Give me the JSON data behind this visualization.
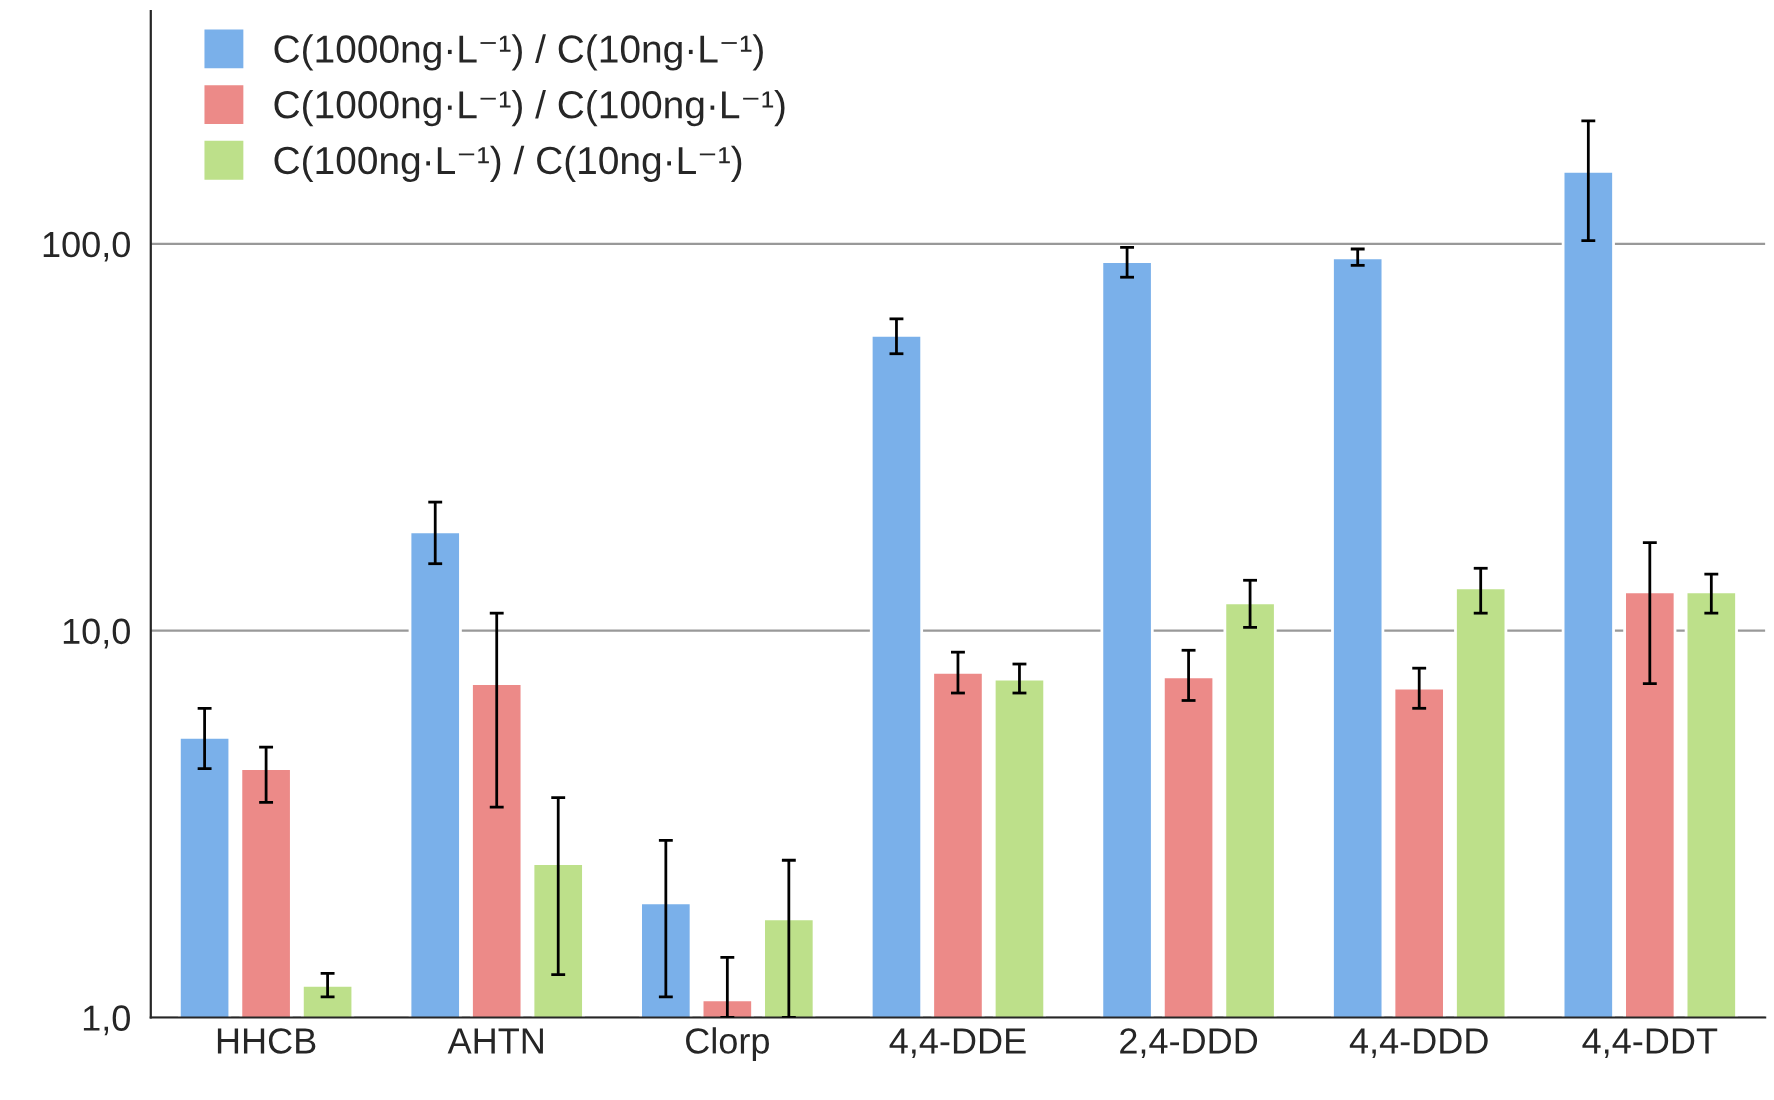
{
  "chart_data": {
    "type": "bar",
    "categories": [
      "HHCB",
      "AHTN",
      "Clorp",
      "4,4-DDE",
      "2,4-DDD",
      "4,4-DDD",
      "4,4-DDT"
    ],
    "series": [
      {
        "name": "C(1000ng·L⁻¹) / C(10ng·L⁻¹)",
        "color": "#7ab0ea",
        "values": [
          5.3,
          18.0,
          1.98,
          58,
          90,
          92,
          154
        ],
        "errors": [
          [
            4.4,
            6.3
          ],
          [
            14.9,
            21.5
          ],
          [
            1.13,
            2.87
          ],
          [
            52,
            64
          ],
          [
            82,
            98
          ],
          [
            88,
            97
          ],
          [
            102,
            208
          ]
        ]
      },
      {
        "name": "C(1000ng·L⁻¹) / C(100ng·L⁻¹)",
        "color": "#ec8a88",
        "values": [
          4.4,
          7.3,
          1.11,
          7.8,
          7.6,
          7.1,
          12.6
        ],
        "errors": [
          [
            3.6,
            5.0
          ],
          [
            3.5,
            11.1
          ],
          [
            1.0,
            1.43
          ],
          [
            6.9,
            8.8
          ],
          [
            6.6,
            8.9
          ],
          [
            6.3,
            8.0
          ],
          [
            7.3,
            16.9
          ]
        ]
      },
      {
        "name": "C(100ng·L⁻¹) / C(10ng·L⁻¹)",
        "color": "#bde08a",
        "values": [
          1.21,
          2.5,
          1.8,
          7.5,
          11.8,
          12.9,
          12.6
        ],
        "errors": [
          [
            1.13,
            1.3
          ],
          [
            1.29,
            3.7
          ],
          [
            1.0,
            2.55
          ],
          [
            6.9,
            8.2
          ],
          [
            10.2,
            13.5
          ],
          [
            11.1,
            14.5
          ],
          [
            11.1,
            14.0
          ]
        ]
      }
    ],
    "log": "y",
    "ylim": [
      1,
      400
    ],
    "yticks": [
      {
        "value": 1,
        "label": "1,0"
      },
      {
        "value": 10,
        "label": "10,0"
      },
      {
        "value": 100,
        "label": "100,0"
      }
    ],
    "grid": "y",
    "legend": "top left"
  }
}
